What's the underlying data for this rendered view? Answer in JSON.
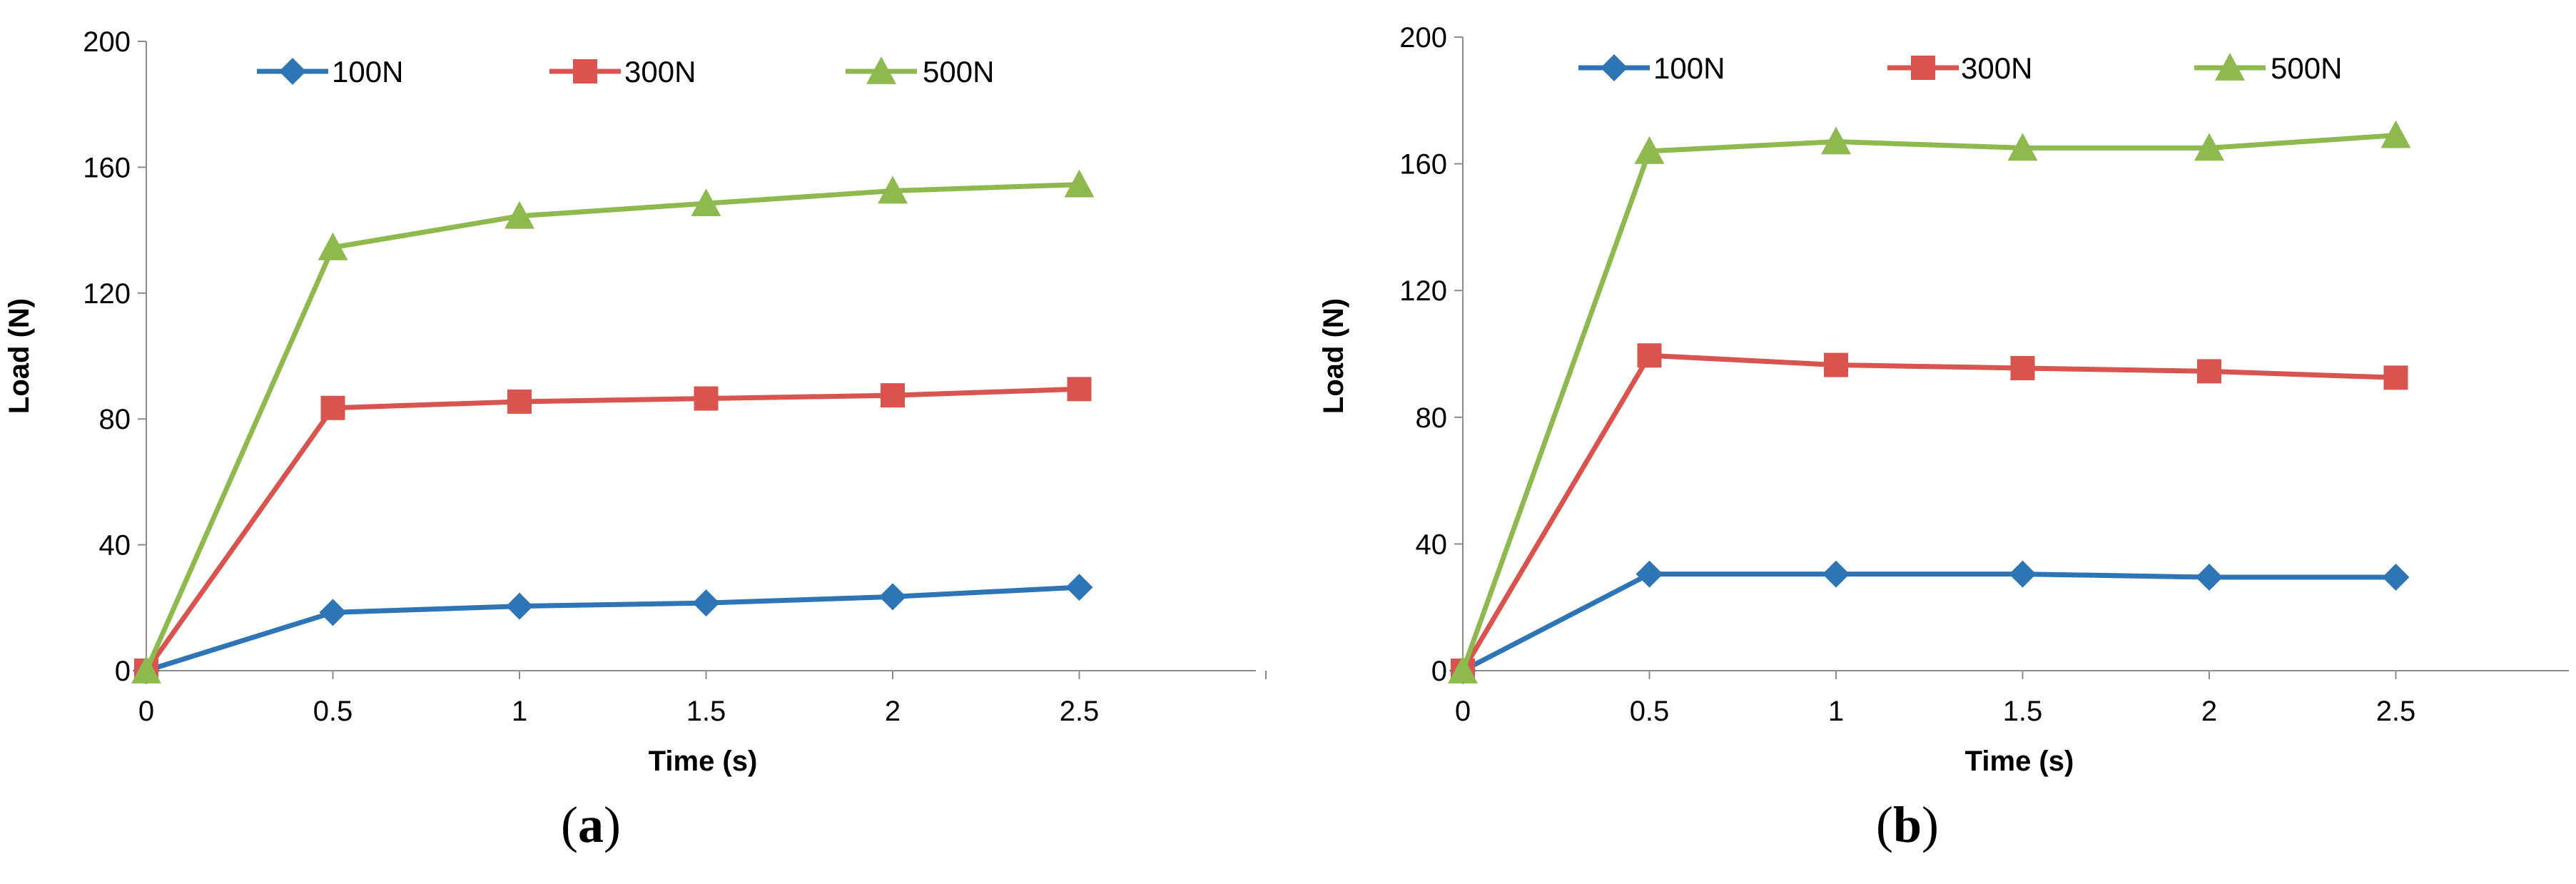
{
  "chart_data": [
    {
      "panel": "a",
      "type": "line",
      "xlabel": "Time (s)",
      "ylabel": "Load (N)",
      "ylim": [
        0,
        200
      ],
      "y_ticks": [
        "0",
        "40",
        "80",
        "120",
        "160",
        "200"
      ],
      "x_ticks": [
        "0",
        "0.5",
        "1",
        "1.5",
        "2",
        "2.5"
      ],
      "x": [
        0,
        0.5,
        1,
        1.5,
        2,
        2.5
      ],
      "legend_position": "top-center",
      "series": [
        {
          "name": "100N",
          "color": "#2E75B6",
          "marker": "diamond",
          "values": [
            0,
            18.5,
            20.5,
            21.5,
            23.5,
            26.5
          ]
        },
        {
          "name": "300N",
          "color": "#D9534F",
          "marker": "square",
          "values": [
            0,
            83.5,
            85.5,
            86.5,
            87.5,
            89.5
          ]
        },
        {
          "name": "500N",
          "color": "#8DB94E",
          "marker": "triangle",
          "values": [
            0,
            134.5,
            144.5,
            148.5,
            152.5,
            154.5
          ]
        }
      ]
    },
    {
      "panel": "b",
      "type": "line",
      "xlabel": "Time (s)",
      "ylabel": "Load (N)",
      "ylim": [
        0,
        200
      ],
      "y_ticks": [
        "0",
        "40",
        "80",
        "120",
        "160",
        "200"
      ],
      "x_ticks": [
        "0",
        "0.5",
        "1",
        "1.5",
        "2",
        "2.5"
      ],
      "x": [
        0,
        0.5,
        1,
        1.5,
        2,
        2.5
      ],
      "legend_position": "top-center",
      "series": [
        {
          "name": "100N",
          "color": "#2E75B6",
          "marker": "diamond",
          "values": [
            0,
            30.5,
            30.5,
            30.5,
            29.5,
            29.5
          ]
        },
        {
          "name": "300N",
          "color": "#D9534F",
          "marker": "square",
          "values": [
            0,
            99.5,
            96.5,
            95.5,
            94.5,
            92.5
          ]
        },
        {
          "name": "500N",
          "color": "#8DB94E",
          "marker": "triangle",
          "values": [
            0,
            164,
            167,
            165,
            165,
            169
          ]
        }
      ]
    }
  ]
}
